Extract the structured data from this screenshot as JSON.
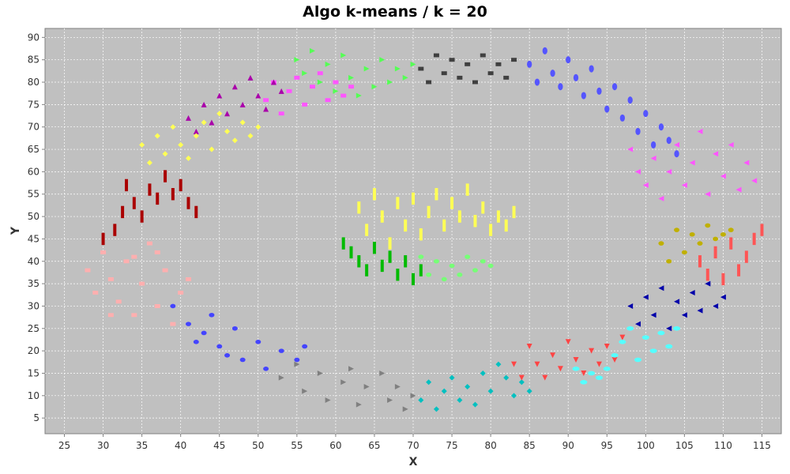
{
  "chart_data": {
    "type": "scatter",
    "title": "Algo k-means / k = 20",
    "xlabel": "X",
    "ylabel": "Y",
    "xlim": [
      22.5,
      117.5
    ],
    "ylim": [
      1.5,
      92
    ],
    "x_ticks": [
      25,
      30,
      35,
      40,
      45,
      50,
      55,
      60,
      65,
      70,
      75,
      80,
      85,
      90,
      95,
      100,
      105,
      110,
      115
    ],
    "y_ticks": [
      5,
      10,
      15,
      20,
      25,
      30,
      35,
      40,
      45,
      50,
      55,
      60,
      65,
      70,
      75,
      80,
      85,
      90
    ],
    "grid": true,
    "legend": "none",
    "background": "#c0c0c0",
    "clusters": [
      {
        "color": "#aa0000",
        "marker": "rect-v",
        "points": [
          [
            30,
            45
          ],
          [
            31.5,
            47
          ],
          [
            32.5,
            51
          ],
          [
            33,
            57
          ],
          [
            34,
            53
          ],
          [
            35,
            50
          ],
          [
            36,
            56
          ],
          [
            37,
            54
          ],
          [
            38,
            59
          ],
          [
            39,
            55
          ],
          [
            40,
            57
          ],
          [
            41,
            53
          ],
          [
            42,
            51
          ]
        ]
      },
      {
        "color": "#ffafaf",
        "marker": "square",
        "points": [
          [
            28,
            38
          ],
          [
            29,
            33
          ],
          [
            30,
            42
          ],
          [
            31,
            36
          ],
          [
            32,
            31
          ],
          [
            33,
            40
          ],
          [
            34,
            28
          ],
          [
            35,
            35
          ],
          [
            36,
            44
          ],
          [
            37,
            30
          ],
          [
            38,
            38
          ],
          [
            39,
            26
          ],
          [
            40,
            33
          ],
          [
            41,
            36
          ],
          [
            31,
            28
          ],
          [
            34,
            41
          ],
          [
            37,
            42
          ]
        ]
      },
      {
        "color": "#4444ff",
        "marker": "ellipse",
        "points": [
          [
            39,
            30
          ],
          [
            41,
            26
          ],
          [
            42,
            22
          ],
          [
            44,
            28
          ],
          [
            45,
            21
          ],
          [
            47,
            25
          ],
          [
            48,
            18
          ],
          [
            50,
            22
          ],
          [
            51,
            16
          ],
          [
            53,
            20
          ],
          [
            55,
            18
          ],
          [
            56,
            21
          ],
          [
            43,
            24
          ],
          [
            46,
            19
          ]
        ]
      },
      {
        "color": "#808080",
        "marker": "triangle-right",
        "points": [
          [
            53,
            14
          ],
          [
            55,
            17
          ],
          [
            56,
            11
          ],
          [
            58,
            15
          ],
          [
            59,
            9
          ],
          [
            61,
            13
          ],
          [
            62,
            16
          ],
          [
            63,
            8
          ],
          [
            64,
            12
          ],
          [
            66,
            15
          ],
          [
            67,
            9
          ],
          [
            68,
            12
          ],
          [
            69,
            7
          ],
          [
            70,
            10
          ]
        ]
      },
      {
        "color": "#00c0c0",
        "marker": "diamond",
        "points": [
          [
            71,
            9
          ],
          [
            72,
            13
          ],
          [
            73,
            7
          ],
          [
            74,
            11
          ],
          [
            75,
            14
          ],
          [
            76,
            9
          ],
          [
            77,
            12
          ],
          [
            78,
            8
          ],
          [
            79,
            15
          ],
          [
            80,
            11
          ],
          [
            81,
            17
          ],
          [
            82,
            14
          ],
          [
            83,
            10
          ],
          [
            84,
            13
          ],
          [
            85,
            11
          ]
        ]
      },
      {
        "color": "#ff4444",
        "marker": "triangle-down",
        "points": [
          [
            83,
            17
          ],
          [
            84,
            14
          ],
          [
            85,
            21
          ],
          [
            86,
            17
          ],
          [
            87,
            14
          ],
          [
            88,
            19
          ],
          [
            89,
            16
          ],
          [
            90,
            22
          ],
          [
            91,
            18
          ],
          [
            92,
            15
          ],
          [
            93,
            20
          ],
          [
            94,
            17
          ],
          [
            95,
            21
          ],
          [
            96,
            18
          ],
          [
            97,
            23
          ]
        ]
      },
      {
        "color": "#55ffff",
        "marker": "ellipse-h",
        "points": [
          [
            91,
            16
          ],
          [
            92,
            13
          ],
          [
            93,
            15
          ],
          [
            94,
            14
          ],
          [
            95,
            16
          ],
          [
            96,
            19
          ],
          [
            97,
            22
          ],
          [
            98,
            25
          ],
          [
            99,
            18
          ],
          [
            100,
            23
          ],
          [
            101,
            20
          ],
          [
            102,
            24
          ],
          [
            103,
            21
          ],
          [
            104,
            25
          ]
        ]
      },
      {
        "color": "#0000aa",
        "marker": "triangle-left",
        "points": [
          [
            98,
            30
          ],
          [
            99,
            26
          ],
          [
            100,
            32
          ],
          [
            101,
            28
          ],
          [
            102,
            34
          ],
          [
            103,
            25
          ],
          [
            104,
            31
          ],
          [
            105,
            28
          ],
          [
            106,
            33
          ],
          [
            107,
            29
          ],
          [
            108,
            35
          ],
          [
            109,
            30
          ],
          [
            110,
            32
          ]
        ]
      },
      {
        "color": "#ff5555",
        "marker": "rect-v",
        "points": [
          [
            107,
            40
          ],
          [
            108,
            37
          ],
          [
            109,
            42
          ],
          [
            110,
            36
          ],
          [
            111,
            44
          ],
          [
            112,
            38
          ],
          [
            113,
            41
          ],
          [
            114,
            45
          ],
          [
            115,
            47
          ]
        ]
      },
      {
        "color": "#c0b000",
        "marker": "ellipse",
        "points": [
          [
            102,
            44
          ],
          [
            103,
            40
          ],
          [
            104,
            47
          ],
          [
            105,
            42
          ],
          [
            106,
            46
          ],
          [
            107,
            44
          ],
          [
            108,
            48
          ],
          [
            109,
            45
          ],
          [
            110,
            46
          ],
          [
            111,
            47
          ]
        ]
      },
      {
        "color": "#ff55ff",
        "marker": "triangle-left",
        "points": [
          [
            98,
            65
          ],
          [
            99,
            60
          ],
          [
            100,
            57
          ],
          [
            101,
            63
          ],
          [
            102,
            54
          ],
          [
            103,
            60
          ],
          [
            104,
            66
          ],
          [
            105,
            57
          ],
          [
            106,
            62
          ],
          [
            107,
            69
          ],
          [
            108,
            55
          ],
          [
            109,
            64
          ],
          [
            110,
            59
          ],
          [
            111,
            66
          ],
          [
            112,
            56
          ],
          [
            113,
            62
          ],
          [
            114,
            58
          ]
        ]
      },
      {
        "color": "#5555ff",
        "marker": "ellipse-v",
        "points": [
          [
            85,
            84
          ],
          [
            86,
            80
          ],
          [
            87,
            87
          ],
          [
            88,
            82
          ],
          [
            89,
            79
          ],
          [
            90,
            85
          ],
          [
            91,
            81
          ],
          [
            92,
            77
          ],
          [
            93,
            83
          ],
          [
            94,
            78
          ],
          [
            95,
            74
          ],
          [
            96,
            79
          ],
          [
            97,
            72
          ],
          [
            98,
            76
          ],
          [
            99,
            69
          ],
          [
            100,
            73
          ],
          [
            101,
            66
          ],
          [
            102,
            70
          ],
          [
            103,
            67
          ],
          [
            104,
            64
          ]
        ]
      },
      {
        "color": "#404040",
        "marker": "square",
        "points": [
          [
            71,
            83
          ],
          [
            72,
            80
          ],
          [
            73,
            86
          ],
          [
            74,
            82
          ],
          [
            75,
            85
          ],
          [
            76,
            81
          ],
          [
            77,
            84
          ],
          [
            78,
            80
          ],
          [
            79,
            86
          ],
          [
            80,
            82
          ],
          [
            81,
            84
          ],
          [
            82,
            81
          ],
          [
            83,
            85
          ]
        ]
      },
      {
        "color": "#55ff55",
        "marker": "triangle-right",
        "points": [
          [
            55,
            85
          ],
          [
            56,
            82
          ],
          [
            57,
            87
          ],
          [
            58,
            80
          ],
          [
            59,
            84
          ],
          [
            60,
            78
          ],
          [
            61,
            86
          ],
          [
            62,
            81
          ],
          [
            63,
            77
          ],
          [
            64,
            83
          ],
          [
            65,
            79
          ],
          [
            66,
            85
          ],
          [
            67,
            80
          ],
          [
            68,
            83
          ],
          [
            69,
            81
          ],
          [
            70,
            84
          ]
        ]
      },
      {
        "color": "#ff55ff",
        "marker": "square",
        "points": [
          [
            51,
            76
          ],
          [
            52,
            80
          ],
          [
            53,
            73
          ],
          [
            54,
            78
          ],
          [
            55,
            81
          ],
          [
            56,
            75
          ],
          [
            57,
            79
          ],
          [
            58,
            82
          ],
          [
            59,
            76
          ],
          [
            60,
            80
          ],
          [
            61,
            77
          ],
          [
            62,
            79
          ]
        ]
      },
      {
        "color": "#aa00aa",
        "marker": "triangle-up",
        "points": [
          [
            41,
            72
          ],
          [
            42,
            69
          ],
          [
            43,
            75
          ],
          [
            44,
            71
          ],
          [
            45,
            77
          ],
          [
            46,
            73
          ],
          [
            47,
            79
          ],
          [
            48,
            75
          ],
          [
            49,
            81
          ],
          [
            50,
            77
          ],
          [
            51,
            74
          ],
          [
            52,
            80
          ],
          [
            53,
            78
          ]
        ]
      },
      {
        "color": "#ffff55",
        "marker": "diamond",
        "points": [
          [
            35,
            66
          ],
          [
            36,
            62
          ],
          [
            37,
            68
          ],
          [
            38,
            64
          ],
          [
            39,
            70
          ],
          [
            40,
            66
          ],
          [
            41,
            63
          ],
          [
            42,
            68
          ],
          [
            43,
            71
          ],
          [
            44,
            65
          ],
          [
            45,
            73
          ],
          [
            46,
            69
          ],
          [
            47,
            67
          ],
          [
            48,
            71
          ],
          [
            49,
            68
          ],
          [
            50,
            70
          ]
        ]
      },
      {
        "color": "#ffff55",
        "marker": "rect-v",
        "points": [
          [
            63,
            52
          ],
          [
            64,
            47
          ],
          [
            65,
            55
          ],
          [
            66,
            50
          ],
          [
            67,
            44
          ],
          [
            68,
            53
          ],
          [
            69,
            48
          ],
          [
            70,
            54
          ],
          [
            71,
            46
          ],
          [
            72,
            51
          ],
          [
            73,
            55
          ],
          [
            74,
            48
          ],
          [
            75,
            53
          ],
          [
            76,
            50
          ],
          [
            77,
            56
          ],
          [
            78,
            49
          ],
          [
            79,
            52
          ],
          [
            80,
            47
          ],
          [
            81,
            50
          ],
          [
            82,
            48
          ],
          [
            83,
            51
          ]
        ]
      },
      {
        "color": "#00bb00",
        "marker": "rect-v",
        "points": [
          [
            61,
            44
          ],
          [
            62,
            42
          ],
          [
            63,
            40
          ],
          [
            64,
            38
          ],
          [
            65,
            43
          ],
          [
            66,
            39
          ],
          [
            67,
            41
          ],
          [
            68,
            37
          ],
          [
            69,
            40
          ],
          [
            70,
            36
          ],
          [
            71,
            38
          ]
        ]
      },
      {
        "color": "#77ff77",
        "marker": "ellipse",
        "points": [
          [
            71,
            41
          ],
          [
            72,
            37
          ],
          [
            73,
            40
          ],
          [
            74,
            36
          ],
          [
            75,
            39
          ],
          [
            76,
            37
          ],
          [
            77,
            41
          ],
          [
            78,
            38
          ],
          [
            79,
            40
          ],
          [
            80,
            39
          ]
        ]
      }
    ]
  }
}
